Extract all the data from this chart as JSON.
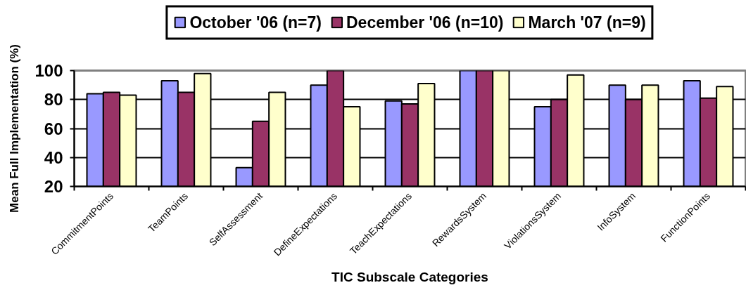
{
  "chart_data": {
    "type": "bar",
    "categories": [
      "CommitmentPoints",
      "TeamPoints",
      "SelfAssessment",
      "DefineExpectations",
      "TeachExpectations",
      "RewardsSystem",
      "ViolationsSystem",
      "InfoSystem",
      "FunctionPoints"
    ],
    "series": [
      {
        "name": "October '06 (n=7)",
        "color": "#9999ff",
        "values": [
          84,
          93,
          33,
          90,
          79,
          100,
          75,
          90,
          93
        ]
      },
      {
        "name": "December '06 (n=10)",
        "color": "#993366",
        "values": [
          85,
          85,
          65,
          100,
          77,
          100,
          80,
          80,
          81
        ]
      },
      {
        "name": "March '07 (n=9)",
        "color": "#ffffcc",
        "values": [
          83,
          98,
          85,
          75,
          91,
          100,
          97,
          90,
          89
        ]
      }
    ],
    "xlabel": "TIC Subscale Categories",
    "ylabel": "Mean Full Implementation (%)",
    "ylim": [
      20,
      100
    ],
    "yticks": [
      20,
      40,
      60,
      80,
      100
    ],
    "grid": "y",
    "legend": "top"
  }
}
